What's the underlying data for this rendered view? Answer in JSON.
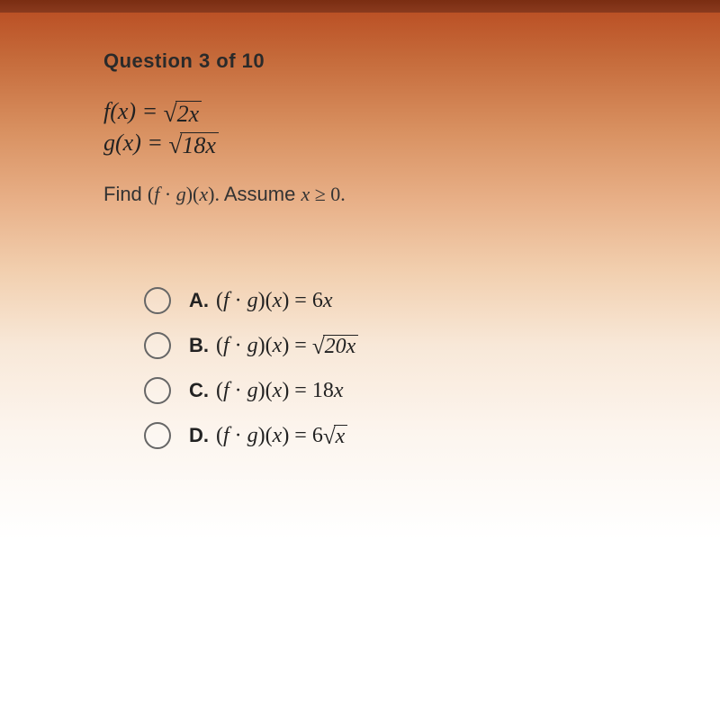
{
  "header": {
    "title": "Question 3 of 10"
  },
  "given": {
    "f_lhs": "f(x) = ",
    "f_rad": "2x",
    "g_lhs": "g(x) = ",
    "g_rad": "18x"
  },
  "prompt": {
    "pre": "Find ",
    "expr_open": "(",
    "expr_f": "f",
    "expr_dot": " · ",
    "expr_g": "g",
    "expr_close": ")(",
    "expr_x": "x",
    "expr_end": ").",
    "post": " Assume ",
    "cond_var": "x",
    "cond_rest": " ≥ 0."
  },
  "choices": {
    "lhs_open": "(",
    "lhs_f": "f",
    "lhs_dot": " · ",
    "lhs_g": "g",
    "lhs_mid": ")(",
    "lhs_x": "x",
    "lhs_close": ") = ",
    "a": {
      "label": "A.",
      "rhs_plain": "6",
      "rhs_var": "x"
    },
    "b": {
      "label": "B.",
      "rhs_rad": "20x"
    },
    "c": {
      "label": "C.",
      "rhs_plain": "18",
      "rhs_var": "x"
    },
    "d": {
      "label": "D.",
      "rhs_plain": "6",
      "rhs_rad": "x"
    }
  },
  "colors": {
    "text": "#222222",
    "radio_border": "#666666",
    "bg_top": "#b84a20",
    "bg_bottom": "#ffffff"
  },
  "fontsize": {
    "title": 22,
    "math": 26,
    "prompt": 22,
    "choice": 24
  }
}
